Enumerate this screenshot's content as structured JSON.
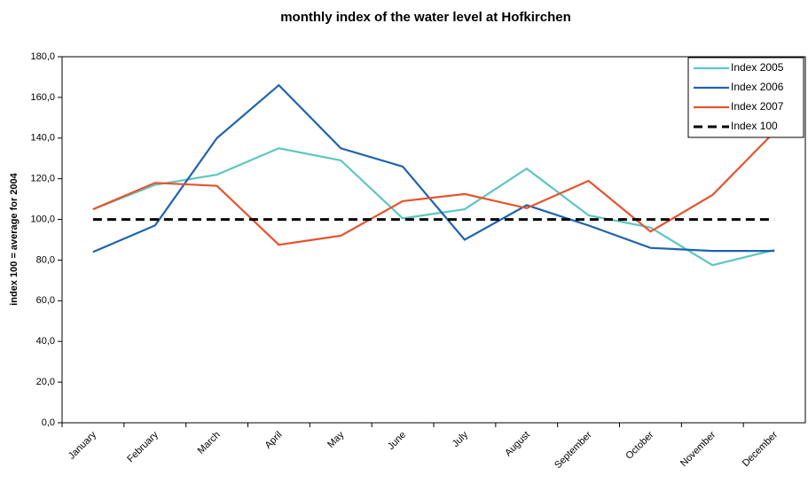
{
  "chart_data": {
    "type": "line",
    "title": "monthly index of the water level at Hofkirchen",
    "y_label": "index 100 = average for 2004",
    "categories": [
      "January",
      "February",
      "March",
      "April",
      "May",
      "June",
      "July",
      "August",
      "September",
      "October",
      "November",
      "December"
    ],
    "series": [
      {
        "name": "Index 2005",
        "color": "#5ec6c0",
        "values": [
          105,
          117,
          122,
          135,
          129,
          100.5,
          105,
          125,
          102,
          96,
          77.5,
          85
        ]
      },
      {
        "name": "Index 2006",
        "color": "#1f63ad",
        "values": [
          84,
          97,
          140,
          166,
          135,
          126,
          90,
          107,
          97,
          86,
          84.5,
          84.5
        ]
      },
      {
        "name": "Index 2007",
        "color": "#e5532e",
        "values": [
          105,
          118,
          116.5,
          87.5,
          92,
          109,
          112.5,
          105.5,
          119,
          94,
          112,
          143
        ]
      },
      {
        "name": "Index 100",
        "color": "#000000",
        "line_style": "dashed",
        "values": [
          100,
          100,
          100,
          100,
          100,
          100,
          100,
          100,
          100,
          100,
          100,
          100
        ]
      }
    ],
    "ylim": [
      0,
      180
    ],
    "yticks": [
      {
        "value": 0,
        "label": "0,0"
      },
      {
        "value": 20,
        "label": "20,0"
      },
      {
        "value": 40,
        "label": "40,0"
      },
      {
        "value": 60,
        "label": "60,0"
      },
      {
        "value": 80,
        "label": "80,0"
      },
      {
        "value": 100,
        "label": "100,0"
      },
      {
        "value": 120,
        "label": "120,0"
      },
      {
        "value": 140,
        "label": "140,0"
      },
      {
        "value": 160,
        "label": "160,0"
      },
      {
        "value": 180,
        "label": "180,0"
      }
    ],
    "legend": "top-right"
  }
}
